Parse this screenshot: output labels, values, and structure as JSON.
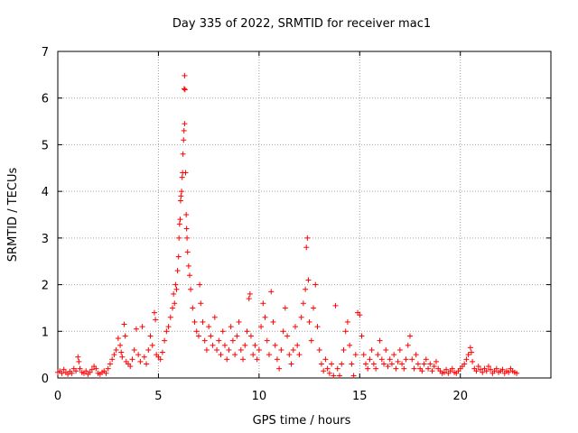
{
  "chart_data": {
    "type": "scatter",
    "title": "Day 335 of 2022, SRMTID for receiver mac1",
    "xlabel": "GPS time / hours",
    "ylabel": "SRMTID / TECUs",
    "xlim": [
      0,
      24.5
    ],
    "ylim": [
      0,
      7
    ],
    "xticks": [
      0,
      5,
      10,
      15,
      20
    ],
    "xtick_labels": [
      "0",
      "5",
      "10",
      "15",
      "20"
    ],
    "yticks": [
      0,
      1,
      2,
      3,
      4,
      5,
      6,
      7
    ],
    "ytick_labels": [
      "0",
      "1",
      "2",
      "3",
      "4",
      "5",
      "6",
      "7"
    ],
    "grid": true,
    "marker": "+",
    "color": "#ff0000",
    "series": [
      {
        "name": "SRMTID mac1",
        "points": [
          [
            0.0,
            0.12
          ],
          [
            0.1,
            0.15
          ],
          [
            0.2,
            0.1
          ],
          [
            0.3,
            0.18
          ],
          [
            0.4,
            0.12
          ],
          [
            0.5,
            0.08
          ],
          [
            0.6,
            0.14
          ],
          [
            0.7,
            0.1
          ],
          [
            0.8,
            0.2
          ],
          [
            0.9,
            0.15
          ],
          [
            1.0,
            0.45
          ],
          [
            1.05,
            0.35
          ],
          [
            1.1,
            0.2
          ],
          [
            1.2,
            0.12
          ],
          [
            1.3,
            0.1
          ],
          [
            1.4,
            0.15
          ],
          [
            1.5,
            0.08
          ],
          [
            1.6,
            0.12
          ],
          [
            1.7,
            0.18
          ],
          [
            1.8,
            0.25
          ],
          [
            1.9,
            0.2
          ],
          [
            2.0,
            0.1
          ],
          [
            2.1,
            0.08
          ],
          [
            2.2,
            0.12
          ],
          [
            2.3,
            0.15
          ],
          [
            2.4,
            0.1
          ],
          [
            2.5,
            0.2
          ],
          [
            2.6,
            0.3
          ],
          [
            2.7,
            0.4
          ],
          [
            2.8,
            0.5
          ],
          [
            2.9,
            0.6
          ],
          [
            3.0,
            0.85
          ],
          [
            3.1,
            0.7
          ],
          [
            3.15,
            0.55
          ],
          [
            3.2,
            0.45
          ],
          [
            3.3,
            1.15
          ],
          [
            3.35,
            0.9
          ],
          [
            3.4,
            0.35
          ],
          [
            3.5,
            0.3
          ],
          [
            3.6,
            0.25
          ],
          [
            3.7,
            0.4
          ],
          [
            3.8,
            0.6
          ],
          [
            3.9,
            1.05
          ],
          [
            4.0,
            0.5
          ],
          [
            4.1,
            0.35
          ],
          [
            4.2,
            1.1
          ],
          [
            4.3,
            0.45
          ],
          [
            4.4,
            0.3
          ],
          [
            4.5,
            0.6
          ],
          [
            4.6,
            0.9
          ],
          [
            4.7,
            0.7
          ],
          [
            4.8,
            1.4
          ],
          [
            4.85,
            1.25
          ],
          [
            4.9,
            0.5
          ],
          [
            5.0,
            0.45
          ],
          [
            5.1,
            0.4
          ],
          [
            5.2,
            0.55
          ],
          [
            5.3,
            0.8
          ],
          [
            5.4,
            1.0
          ],
          [
            5.5,
            1.1
          ],
          [
            5.6,
            1.3
          ],
          [
            5.7,
            1.5
          ],
          [
            5.75,
            1.8
          ],
          [
            5.8,
            1.6
          ],
          [
            5.85,
            2.0
          ],
          [
            5.9,
            1.9
          ],
          [
            5.95,
            2.3
          ],
          [
            6.0,
            2.6
          ],
          [
            6.02,
            3.0
          ],
          [
            6.05,
            3.3
          ],
          [
            6.08,
            3.4
          ],
          [
            6.1,
            3.8
          ],
          [
            6.12,
            3.9
          ],
          [
            6.15,
            4.0
          ],
          [
            6.18,
            4.3
          ],
          [
            6.2,
            4.4
          ],
          [
            6.22,
            4.8
          ],
          [
            6.25,
            5.1
          ],
          [
            6.27,
            5.3
          ],
          [
            6.3,
            5.45
          ],
          [
            6.28,
            6.2
          ],
          [
            6.3,
            6.48
          ],
          [
            6.32,
            6.18
          ],
          [
            6.35,
            4.4
          ],
          [
            6.38,
            3.5
          ],
          [
            6.4,
            3.2
          ],
          [
            6.42,
            3.0
          ],
          [
            6.45,
            2.7
          ],
          [
            6.5,
            2.4
          ],
          [
            6.55,
            2.2
          ],
          [
            6.6,
            1.9
          ],
          [
            6.7,
            1.5
          ],
          [
            6.8,
            1.2
          ],
          [
            6.9,
            1.0
          ],
          [
            7.0,
            0.9
          ],
          [
            7.05,
            2.0
          ],
          [
            7.1,
            1.6
          ],
          [
            7.2,
            1.2
          ],
          [
            7.3,
            0.8
          ],
          [
            7.4,
            0.6
          ],
          [
            7.5,
            1.1
          ],
          [
            7.6,
            0.9
          ],
          [
            7.7,
            0.7
          ],
          [
            7.8,
            1.3
          ],
          [
            7.9,
            0.6
          ],
          [
            8.0,
            0.8
          ],
          [
            8.1,
            0.5
          ],
          [
            8.2,
            1.0
          ],
          [
            8.3,
            0.7
          ],
          [
            8.4,
            0.4
          ],
          [
            8.5,
            0.6
          ],
          [
            8.6,
            1.1
          ],
          [
            8.7,
            0.8
          ],
          [
            8.8,
            0.5
          ],
          [
            8.9,
            0.9
          ],
          [
            9.0,
            1.2
          ],
          [
            9.1,
            0.6
          ],
          [
            9.2,
            0.4
          ],
          [
            9.3,
            0.7
          ],
          [
            9.4,
            1.0
          ],
          [
            9.5,
            1.7
          ],
          [
            9.55,
            1.8
          ],
          [
            9.6,
            0.9
          ],
          [
            9.7,
            0.5
          ],
          [
            9.8,
            0.7
          ],
          [
            9.9,
            0.4
          ],
          [
            10.0,
            0.6
          ],
          [
            10.1,
            1.1
          ],
          [
            10.2,
            1.6
          ],
          [
            10.3,
            1.3
          ],
          [
            10.4,
            0.8
          ],
          [
            10.5,
            0.5
          ],
          [
            10.6,
            1.85
          ],
          [
            10.7,
            1.2
          ],
          [
            10.8,
            0.7
          ],
          [
            10.9,
            0.4
          ],
          [
            11.0,
            0.2
          ],
          [
            11.1,
            0.6
          ],
          [
            11.2,
            1.0
          ],
          [
            11.3,
            1.5
          ],
          [
            11.4,
            0.9
          ],
          [
            11.5,
            0.5
          ],
          [
            11.6,
            0.3
          ],
          [
            11.7,
            0.6
          ],
          [
            11.8,
            1.1
          ],
          [
            11.9,
            0.7
          ],
          [
            12.0,
            0.5
          ],
          [
            12.1,
            1.3
          ],
          [
            12.2,
            1.6
          ],
          [
            12.3,
            1.9
          ],
          [
            12.35,
            2.8
          ],
          [
            12.4,
            3.0
          ],
          [
            12.45,
            2.1
          ],
          [
            12.5,
            1.2
          ],
          [
            12.6,
            0.8
          ],
          [
            12.7,
            1.5
          ],
          [
            12.8,
            2.0
          ],
          [
            12.9,
            1.1
          ],
          [
            13.0,
            0.6
          ],
          [
            13.1,
            0.3
          ],
          [
            13.2,
            0.15
          ],
          [
            13.3,
            0.4
          ],
          [
            13.4,
            0.2
          ],
          [
            13.5,
            0.1
          ],
          [
            13.6,
            0.3
          ],
          [
            13.7,
            0.05
          ],
          [
            13.8,
            1.55
          ],
          [
            13.9,
            0.2
          ],
          [
            14.0,
            0.05
          ],
          [
            14.1,
            0.3
          ],
          [
            14.2,
            0.6
          ],
          [
            14.3,
            1.0
          ],
          [
            14.4,
            1.2
          ],
          [
            14.5,
            0.7
          ],
          [
            14.6,
            0.3
          ],
          [
            14.7,
            0.05
          ],
          [
            14.8,
            0.5
          ],
          [
            14.9,
            1.4
          ],
          [
            15.0,
            1.35
          ],
          [
            15.1,
            0.9
          ],
          [
            15.2,
            0.5
          ],
          [
            15.3,
            0.3
          ],
          [
            15.4,
            0.2
          ],
          [
            15.5,
            0.4
          ],
          [
            15.6,
            0.6
          ],
          [
            15.7,
            0.3
          ],
          [
            15.8,
            0.2
          ],
          [
            15.9,
            0.5
          ],
          [
            16.0,
            0.8
          ],
          [
            16.1,
            0.4
          ],
          [
            16.2,
            0.3
          ],
          [
            16.3,
            0.6
          ],
          [
            16.4,
            0.25
          ],
          [
            16.5,
            0.4
          ],
          [
            16.6,
            0.3
          ],
          [
            16.7,
            0.5
          ],
          [
            16.8,
            0.2
          ],
          [
            16.9,
            0.35
          ],
          [
            17.0,
            0.6
          ],
          [
            17.1,
            0.3
          ],
          [
            17.2,
            0.2
          ],
          [
            17.3,
            0.4
          ],
          [
            17.4,
            0.7
          ],
          [
            17.5,
            0.9
          ],
          [
            17.6,
            0.4
          ],
          [
            17.7,
            0.2
          ],
          [
            17.8,
            0.5
          ],
          [
            17.9,
            0.3
          ],
          [
            18.0,
            0.2
          ],
          [
            18.1,
            0.15
          ],
          [
            18.2,
            0.3
          ],
          [
            18.3,
            0.4
          ],
          [
            18.4,
            0.2
          ],
          [
            18.5,
            0.3
          ],
          [
            18.6,
            0.15
          ],
          [
            18.7,
            0.25
          ],
          [
            18.8,
            0.35
          ],
          [
            18.9,
            0.2
          ],
          [
            19.0,
            0.15
          ],
          [
            19.1,
            0.1
          ],
          [
            19.2,
            0.12
          ],
          [
            19.3,
            0.18
          ],
          [
            19.4,
            0.1
          ],
          [
            19.5,
            0.15
          ],
          [
            19.6,
            0.2
          ],
          [
            19.7,
            0.12
          ],
          [
            19.8,
            0.1
          ],
          [
            19.9,
            0.15
          ],
          [
            20.0,
            0.2
          ],
          [
            20.1,
            0.25
          ],
          [
            20.2,
            0.3
          ],
          [
            20.3,
            0.4
          ],
          [
            20.4,
            0.5
          ],
          [
            20.5,
            0.65
          ],
          [
            20.55,
            0.55
          ],
          [
            20.6,
            0.35
          ],
          [
            20.7,
            0.2
          ],
          [
            20.8,
            0.15
          ],
          [
            20.9,
            0.25
          ],
          [
            21.0,
            0.18
          ],
          [
            21.1,
            0.12
          ],
          [
            21.2,
            0.2
          ],
          [
            21.3,
            0.15
          ],
          [
            21.4,
            0.25
          ],
          [
            21.5,
            0.18
          ],
          [
            21.6,
            0.1
          ],
          [
            21.7,
            0.15
          ],
          [
            21.8,
            0.2
          ],
          [
            21.9,
            0.12
          ],
          [
            22.0,
            0.15
          ],
          [
            22.1,
            0.18
          ],
          [
            22.2,
            0.1
          ],
          [
            22.3,
            0.15
          ],
          [
            22.4,
            0.12
          ],
          [
            22.5,
            0.2
          ],
          [
            22.6,
            0.15
          ],
          [
            22.7,
            0.12
          ],
          [
            22.8,
            0.1
          ]
        ]
      }
    ]
  }
}
